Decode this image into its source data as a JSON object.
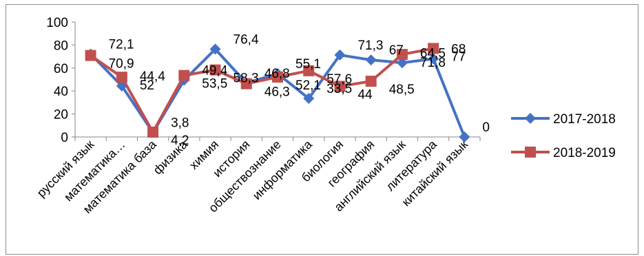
{
  "chart_data": {
    "type": "line",
    "categories": [
      "русский язык",
      "математика…",
      "математика база",
      "физика",
      "химия",
      "история",
      "обществознание",
      "информатика",
      "биология",
      "география",
      "английский язык",
      "литература",
      "китайский язык"
    ],
    "y_ticks": [
      "0",
      "20",
      "40",
      "60",
      "80",
      "100"
    ],
    "ylim": [
      0,
      100
    ],
    "grid": false,
    "legend_position": "right",
    "series": [
      {
        "name": "2017-2018",
        "color": "#4472C4",
        "marker": "diamond",
        "values": [
          72.1,
          44.4,
          3.8,
          49.4,
          76.4,
          46.8,
          55.1,
          33.5,
          71.3,
          67,
          64.5,
          68,
          0
        ],
        "labels": [
          "72,1",
          "44,4",
          "3,8",
          "49,4",
          "76,4",
          "46,8",
          "55,1",
          "33,5",
          "71,3",
          "67",
          "64,5",
          "68",
          "0"
        ]
      },
      {
        "name": "2018-2019",
        "color": "#C0504D",
        "marker": "square",
        "values": [
          70.9,
          52,
          4.2,
          53.5,
          58.3,
          46.3,
          52.1,
          57.6,
          44,
          48.5,
          71.8,
          77,
          null
        ],
        "labels": [
          "70,9",
          "52",
          "4,2",
          "53,5",
          "58,3",
          "46,3",
          "52,1",
          "57,6",
          "44",
          "48,5",
          "71,8",
          "77",
          ""
        ]
      }
    ]
  }
}
